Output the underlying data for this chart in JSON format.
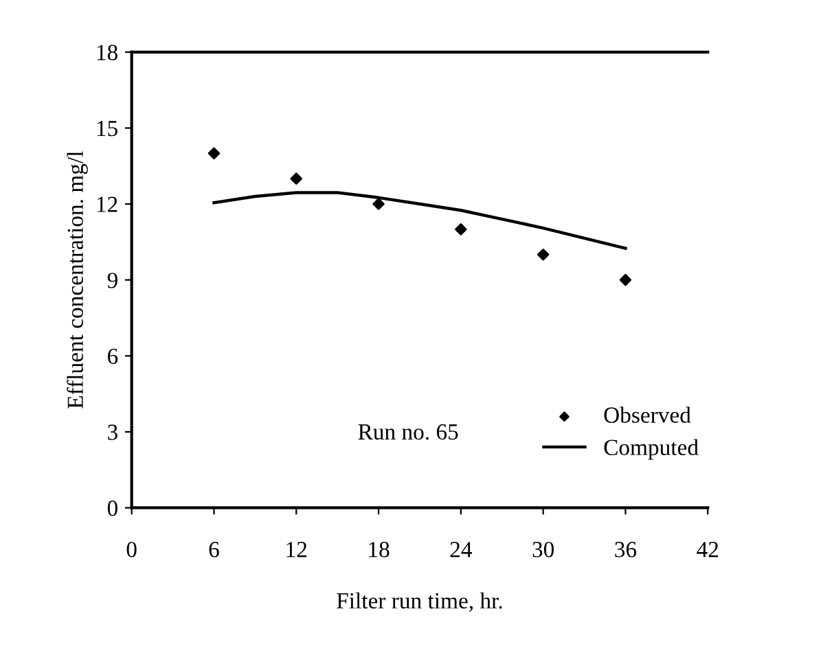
{
  "chart_data": {
    "type": "scatter",
    "xlabel": "Filter run time, hr.",
    "ylabel": "Effluent concentration. mg/l",
    "xlim": [
      0,
      42
    ],
    "ylim": [
      0,
      18
    ],
    "xticks": [
      0,
      6,
      12,
      18,
      24,
      30,
      36,
      42
    ],
    "yticks": [
      0,
      3,
      6,
      9,
      12,
      15,
      18
    ],
    "grid": false,
    "legend": "bottom right",
    "annotations": [
      "Run no. 65"
    ],
    "series": [
      {
        "name": "Observed",
        "marker": "diamond",
        "color": "#000000",
        "x": [
          6,
          12,
          18,
          24,
          30,
          36
        ],
        "values": [
          14,
          13,
          12,
          11,
          10,
          9
        ]
      },
      {
        "name": "Computed",
        "type": "line",
        "marker": "none",
        "line_style": "solid",
        "color": "#000000",
        "x": [
          6,
          9,
          12,
          15,
          18,
          21,
          24,
          27,
          30,
          33,
          36
        ],
        "values": [
          12.05,
          12.3,
          12.45,
          12.45,
          12.25,
          12.0,
          11.75,
          11.4,
          11.05,
          10.65,
          10.25
        ]
      }
    ]
  }
}
